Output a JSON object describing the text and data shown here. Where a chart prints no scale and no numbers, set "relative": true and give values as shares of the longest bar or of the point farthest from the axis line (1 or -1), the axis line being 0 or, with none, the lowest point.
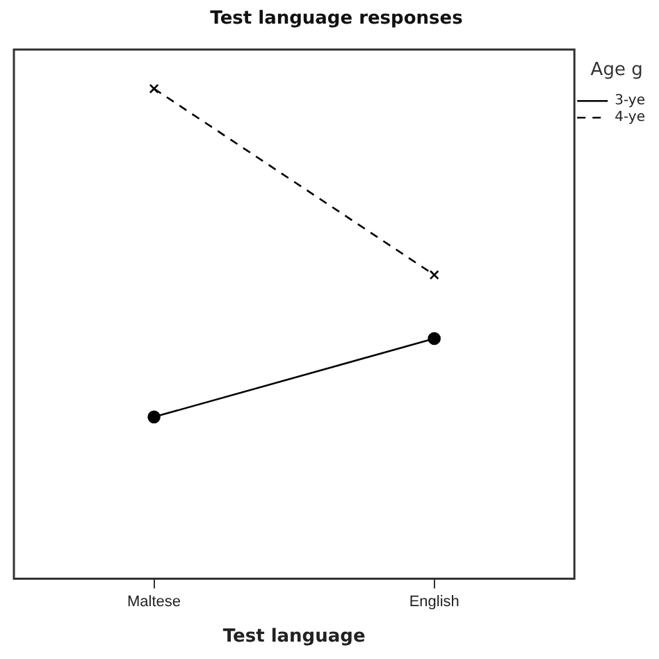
{
  "chart_data": {
    "type": "line",
    "title": "Test language responses",
    "xlabel": "Test language",
    "legend_title": "Age g",
    "categories": [
      "Maltese",
      "English"
    ],
    "relative": true,
    "legend": "right",
    "grid": false,
    "series": [
      {
        "name": "3-ye",
        "color": "#000000",
        "values": [
          0.33,
          0.49
        ],
        "marker": "circle",
        "line_style": "solid"
      },
      {
        "name": "4-ye",
        "color": "#000000",
        "values": [
          1,
          0.62
        ],
        "marker": "cross",
        "line_style": "dashed"
      }
    ]
  }
}
